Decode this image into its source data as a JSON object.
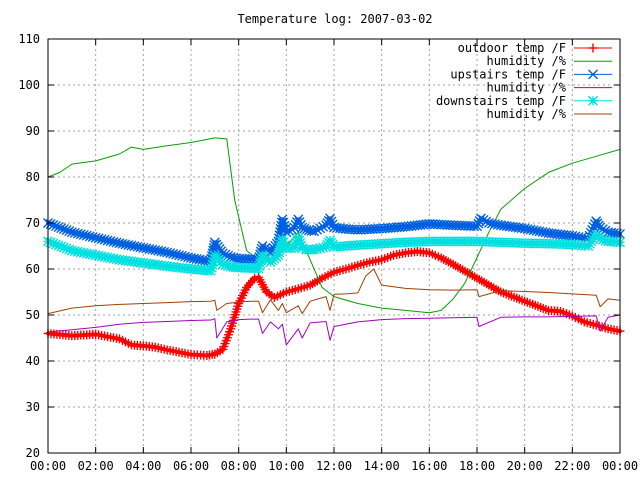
{
  "chart_data": {
    "type": "line",
    "title": "Temperature log: 2007-03-02",
    "xlabel": "",
    "ylabel": "",
    "grid": true,
    "legend_position": "top-right",
    "x_range": [
      "00:00",
      "24:00"
    ],
    "ylim": [
      20,
      110
    ],
    "y_ticks": [
      20,
      30,
      40,
      50,
      60,
      70,
      80,
      90,
      100,
      110
    ],
    "x_tick_labels": [
      "00:00",
      "02:00",
      "04:00",
      "06:00",
      "08:00",
      "10:00",
      "12:00",
      "14:00",
      "16:00",
      "18:00",
      "20:00",
      "22:00",
      "00:00"
    ],
    "series": [
      {
        "name": "outdoor temp /F",
        "color": "#ff0000",
        "marker": "plus",
        "x": [
          "00:00",
          "01:00",
          "02:00",
          "03:00",
          "03:30",
          "04:00",
          "04:30",
          "05:00",
          "06:00",
          "06:40",
          "07:00",
          "07:20",
          "07:40",
          "08:00",
          "08:20",
          "08:40",
          "08:50",
          "09:10",
          "09:30",
          "10:00",
          "10:30",
          "11:00",
          "11:30",
          "12:00",
          "12:30",
          "13:00",
          "13:30",
          "14:00",
          "14:30",
          "15:00",
          "15:30",
          "16:00",
          "16:30",
          "17:00",
          "17:30",
          "18:00",
          "18:30",
          "19:00",
          "20:00",
          "21:00",
          "21:30",
          "22:00",
          "22:30",
          "23:00",
          "23:30",
          "24:00"
        ],
        "y": [
          46,
          45.5,
          45.8,
          44.8,
          43.5,
          43.3,
          43,
          42.4,
          41.4,
          41.2,
          41.5,
          42.5,
          47,
          52.5,
          56,
          58,
          58.2,
          55,
          53.8,
          55,
          55.7,
          56.5,
          58,
          59.3,
          60,
          60.8,
          61.5,
          62,
          63,
          63.5,
          63.8,
          63.5,
          62.4,
          61,
          59.5,
          58,
          56.5,
          55,
          53,
          51,
          50.8,
          49.8,
          48.5,
          47.8,
          47,
          46.5
        ]
      },
      {
        "name": "humidity /%",
        "color": "#00a000",
        "marker": "none",
        "x": [
          "00:00",
          "00:30",
          "01:00",
          "02:00",
          "03:00",
          "03:30",
          "04:00",
          "05:00",
          "06:00",
          "07:00",
          "07:30",
          "07:50",
          "08:20",
          "08:50",
          "09:10",
          "09:30",
          "10:00",
          "10:30",
          "11:00",
          "11:30",
          "12:00",
          "13:00",
          "14:00",
          "15:00",
          "16:00",
          "16:30",
          "17:00",
          "17:30",
          "18:00",
          "18:30",
          "19:00",
          "20:00",
          "21:00",
          "22:00",
          "23:00",
          "24:00"
        ],
        "y": [
          80,
          81,
          82.8,
          83.5,
          85,
          86.5,
          86,
          86.8,
          87.5,
          88.5,
          88.3,
          75,
          64,
          62,
          61.5,
          62,
          65,
          68,
          62,
          56,
          54,
          52.5,
          51.5,
          51,
          50.5,
          51,
          53.5,
          57,
          62.5,
          68,
          73,
          77.5,
          81,
          83,
          84.5,
          86
        ]
      },
      {
        "name": "upstairs temp /F",
        "color": "#0060e0",
        "marker": "x",
        "x": [
          "00:00",
          "01:00",
          "02:00",
          "03:00",
          "04:00",
          "05:00",
          "06:00",
          "06:50",
          "07:00",
          "07:20",
          "07:40",
          "08:00",
          "08:30",
          "08:50",
          "09:00",
          "09:20",
          "09:40",
          "09:50",
          "10:00",
          "10:20",
          "10:30",
          "10:40",
          "10:50",
          "11:10",
          "11:40",
          "11:50",
          "12:00",
          "12:30",
          "13:00",
          "14:00",
          "15:00",
          "16:00",
          "17:00",
          "18:00",
          "18:10",
          "18:30",
          "19:00",
          "20:00",
          "21:00",
          "22:00",
          "22:40",
          "23:00",
          "23:10",
          "23:30",
          "24:00"
        ],
        "y": [
          70,
          68,
          66.8,
          65.6,
          64.6,
          63.6,
          62.4,
          61.6,
          65.8,
          63.4,
          62.6,
          62.2,
          62.2,
          62,
          65,
          63.6,
          66,
          70.8,
          68,
          69,
          70.8,
          69,
          68.5,
          68.2,
          69.5,
          71,
          69,
          68.7,
          68.5,
          68.8,
          69.2,
          69.8,
          69.5,
          69.3,
          71,
          70,
          69.5,
          68.8,
          67.8,
          67.2,
          66.6,
          70.4,
          69,
          68,
          67.6
        ]
      },
      {
        "name": "humidity /%",
        "color": "#a000c0",
        "marker": "none",
        "x": [
          "00:00",
          "01:00",
          "02:00",
          "03:00",
          "04:00",
          "05:00",
          "06:00",
          "06:50",
          "07:00",
          "07:05",
          "07:30",
          "08:00",
          "08:30",
          "08:50",
          "09:00",
          "09:20",
          "09:40",
          "09:50",
          "10:00",
          "10:30",
          "10:40",
          "11:00",
          "11:40",
          "11:50",
          "12:00",
          "13:00",
          "14:00",
          "15:00",
          "16:00",
          "17:00",
          "18:00",
          "18:05",
          "19:00",
          "20:00",
          "21:00",
          "22:00",
          "23:00",
          "23:10",
          "23:30",
          "24:00"
        ],
        "y": [
          46.3,
          46.8,
          47.3,
          48,
          48.4,
          48.6,
          48.8,
          48.9,
          49.2,
          45,
          48.5,
          49,
          49.1,
          49.1,
          46,
          48.5,
          47,
          48,
          43.5,
          47,
          45,
          48.3,
          48.6,
          44.5,
          47.5,
          48.5,
          49,
          49.2,
          49.3,
          49.4,
          49.5,
          47.5,
          49.5,
          49.6,
          49.6,
          49.7,
          49.8,
          46.5,
          49.5,
          50
        ]
      },
      {
        "name": "downstairs temp /F",
        "color": "#00e0e0",
        "marker": "star",
        "x": [
          "00:00",
          "01:00",
          "02:00",
          "03:00",
          "04:00",
          "05:00",
          "06:00",
          "06:50",
          "07:00",
          "07:20",
          "07:40",
          "08:00",
          "08:30",
          "08:50",
          "09:00",
          "09:20",
          "09:40",
          "09:50",
          "10:00",
          "10:20",
          "10:30",
          "10:40",
          "10:50",
          "11:10",
          "11:40",
          "11:50",
          "12:00",
          "12:30",
          "13:00",
          "14:00",
          "15:00",
          "16:00",
          "17:00",
          "18:00",
          "19:00",
          "20:00",
          "21:00",
          "22:00",
          "22:40",
          "23:00",
          "23:10",
          "23:30",
          "24:00"
        ],
        "y": [
          66,
          64,
          63,
          62,
          61.3,
          60.6,
          60,
          59.6,
          63,
          61,
          60.5,
          60.3,
          60.2,
          60.1,
          63,
          61.5,
          63,
          66.5,
          64.5,
          64.6,
          66.8,
          64.5,
          64.2,
          64.2,
          64.8,
          66.2,
          64.8,
          65,
          65.2,
          65.5,
          65.8,
          66,
          66,
          66,
          65.8,
          65.6,
          65.5,
          65.3,
          65,
          67.5,
          66.5,
          66,
          65.8
        ]
      },
      {
        "name": "humidity /%",
        "color": "#a04000",
        "marker": "none",
        "x": [
          "00:00",
          "01:00",
          "02:00",
          "03:00",
          "04:00",
          "05:00",
          "06:00",
          "06:50",
          "07:00",
          "07:05",
          "07:30",
          "08:00",
          "08:30",
          "08:50",
          "09:00",
          "09:20",
          "09:40",
          "09:50",
          "10:00",
          "10:30",
          "10:40",
          "11:00",
          "11:40",
          "11:50",
          "12:00",
          "12:30",
          "13:00",
          "13:20",
          "13:40",
          "14:00",
          "15:00",
          "16:00",
          "17:00",
          "18:00",
          "18:05",
          "19:00",
          "20:00",
          "21:00",
          "22:00",
          "23:00",
          "23:10",
          "23:30",
          "24:00"
        ],
        "y": [
          50.3,
          51.5,
          52,
          52.3,
          52.5,
          52.7,
          52.9,
          53,
          53.2,
          51,
          52.5,
          52.8,
          53,
          53,
          50.5,
          53.3,
          51,
          52.5,
          50.5,
          52,
          50.3,
          53,
          54,
          51,
          54.5,
          54.6,
          54.8,
          58.5,
          60,
          56.5,
          55.8,
          55.5,
          55.4,
          55.5,
          54,
          55.3,
          55.1,
          54.9,
          54.6,
          54.3,
          51.8,
          53.5,
          53.2
        ]
      }
    ]
  }
}
